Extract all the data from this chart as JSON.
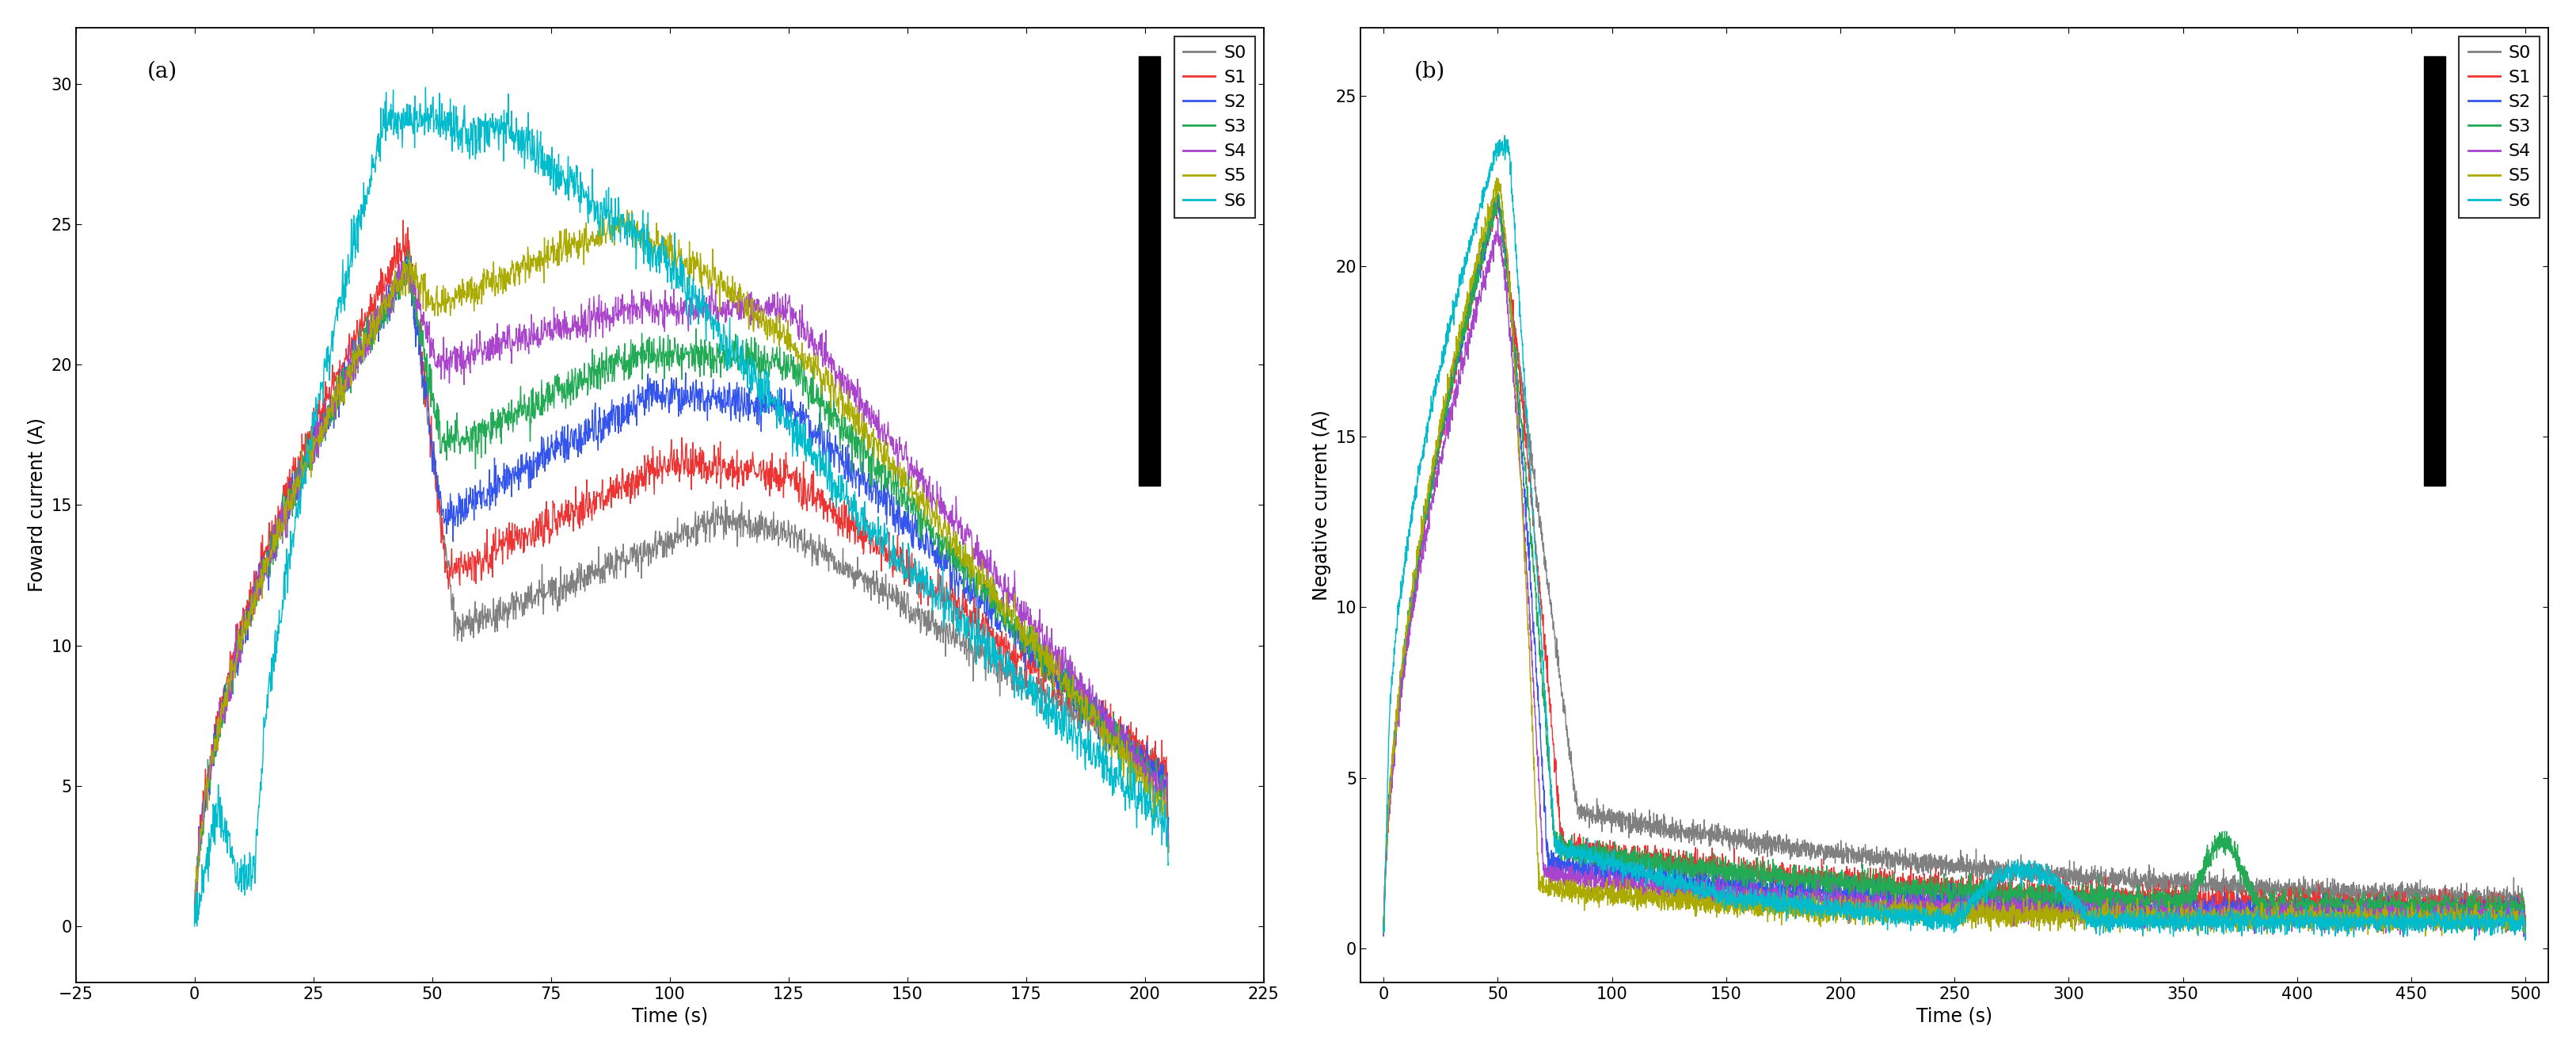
{
  "panel_a": {
    "title": "(a)",
    "xlabel": "Time (s)",
    "ylabel": "Foward current (A)",
    "xlim": [
      -25,
      225
    ],
    "ylim": [
      -2,
      32
    ],
    "xticks": [
      -25,
      0,
      25,
      50,
      75,
      100,
      125,
      150,
      175,
      200,
      225
    ],
    "yticks": [
      0,
      5,
      10,
      15,
      20,
      25,
      30
    ]
  },
  "panel_b": {
    "title": "(b)",
    "xlabel": "Time (s)",
    "ylabel": "Negative current (A)",
    "xlim": [
      -10,
      510
    ],
    "ylim": [
      -1,
      27
    ],
    "xticks": [
      0,
      50,
      100,
      150,
      200,
      250,
      300,
      350,
      400,
      450,
      500
    ],
    "yticks": [
      0,
      5,
      10,
      15,
      20,
      25
    ]
  },
  "series_labels": [
    "S0",
    "S1",
    "S2",
    "S3",
    "S4",
    "S5",
    "S6"
  ],
  "series_colors": [
    "#808080",
    "#EE3333",
    "#3355EE",
    "#22AA55",
    "#AA44CC",
    "#AAAA00",
    "#00BBCC"
  ],
  "line_width": 1.0,
  "background_color": "#ffffff",
  "title_fontsize": 20,
  "label_fontsize": 17,
  "tick_fontsize": 15,
  "legend_fontsize": 16
}
